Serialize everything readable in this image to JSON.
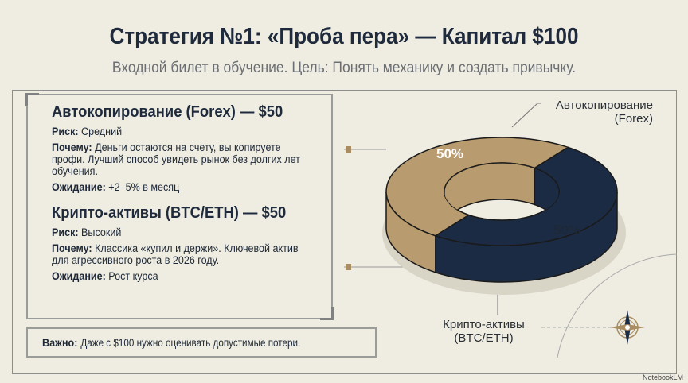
{
  "header": {
    "title": "Стратегия №1: «Проба пера» — Капитал $100",
    "subtitle": "Входной билет в обучение. Цель: Понять механику и создать привычку."
  },
  "sections": [
    {
      "title": "Автокопирование (Forex) — $50",
      "risk_label": "Риск:",
      "risk": "Средний",
      "why_label": "Почему:",
      "why": "Деньги остаются на счету, вы копируете профи. Лучший способ увидеть рынок без долгих лет обучения.",
      "expect_label": "Ожидание:",
      "expect": "+2–5% в месяц"
    },
    {
      "title": "Крипто-активы (BTC/ETH) — $50",
      "risk_label": "Риск:",
      "risk": "Высокий",
      "why_label": "Почему:",
      "why": "Классика «купил и держи». Ключевой актив для агрессивного роста в 2026 году.",
      "expect_label": "Ожидание:",
      "expect": "Рост курса"
    }
  ],
  "note": {
    "label": "Важно:",
    "text": "Даже с $100 нужно оценивать допустимые потери."
  },
  "chart_data": {
    "type": "pie",
    "style": "3d-donut",
    "categories": [
      "Автокопирование (Forex)",
      "Крипто-активы (BTC/ETH)"
    ],
    "values": [
      50,
      50
    ],
    "data_labels": [
      "50%",
      "50%"
    ],
    "colors": [
      "#1c2b44",
      "#b89b6e"
    ],
    "legend": "callout-labels"
  },
  "labels": {
    "forex": [
      "Автокопирование",
      "(Forex)"
    ],
    "crypto": [
      "Крипто-активы",
      "(BTC/ETH)"
    ]
  },
  "watermark": "NotebookLM"
}
